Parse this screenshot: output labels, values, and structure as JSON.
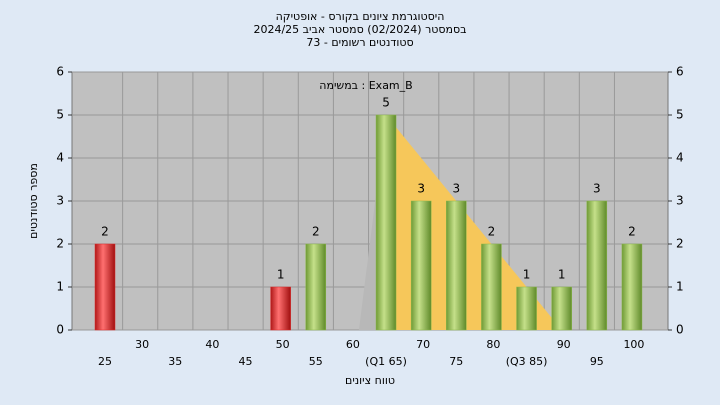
{
  "chart_data": {
    "type": "bar",
    "title": [
      "היסטוגרמת ציונים בקורס - אופטיקה",
      "בסמסטר  (02/2024)  סמסטר אביב 2024/25",
      "סטודנטים רשומים - 73"
    ],
    "annotation": "במשימה : Exam_B",
    "x_label": "טווח ציונים",
    "y_label": "מספר סטודנטים",
    "categories": [
      "25",
      "30",
      "35",
      "40",
      "45",
      "50",
      "55",
      "60",
      "(Q1 65)",
      "70",
      "75",
      "80",
      "(Q3 85)",
      "90",
      "95",
      "100"
    ],
    "values": [
      2,
      0,
      0,
      0,
      0,
      1,
      2,
      0,
      5,
      3,
      3,
      2,
      1,
      1,
      3,
      2
    ],
    "colors": [
      "#e02828",
      "#8ab84a",
      "#8ab84a",
      "#8ab84a",
      "#8ab84a",
      "#e02828",
      "#8ab84a",
      "#8ab84a",
      "#8ab84a",
      "#8ab84a",
      "#8ab84a",
      "#8ab84a",
      "#8ab84a",
      "#8ab84a",
      "#8ab84a",
      "#8ab84a"
    ],
    "ylim": [
      0,
      6
    ],
    "yticks": [
      0,
      1,
      2,
      3,
      4,
      5,
      6
    ],
    "grid": true
  }
}
